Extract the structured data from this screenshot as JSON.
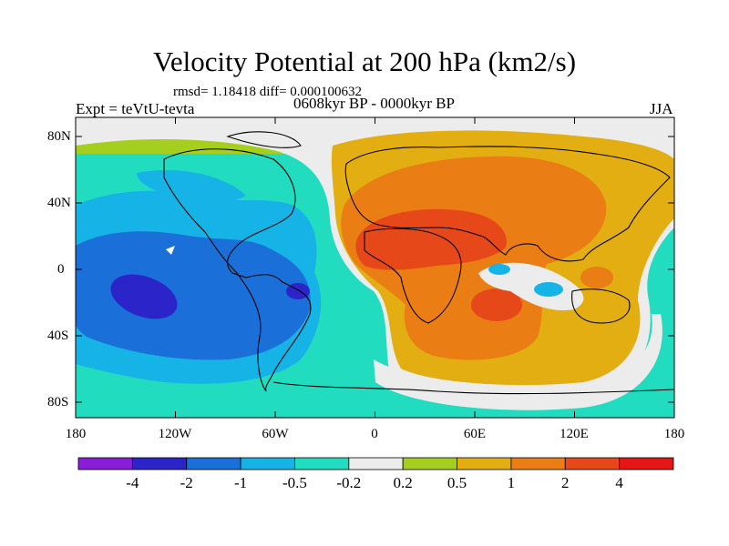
{
  "title": "Velocity Potential at 200 hPa (km2/s)",
  "stats_line": "rmsd= 1.18418 diff= 0.000100632",
  "experiment": "Expt = teVtU-tevta",
  "period": "0608kyr BP - 0000kyr BP",
  "season": "JJA",
  "lat_labels": [
    "80N",
    "40N",
    "0",
    "40S",
    "80S"
  ],
  "lon_labels": [
    "180",
    "120W",
    "60W",
    "0",
    "60E",
    "120E",
    "180"
  ],
  "colorbar": {
    "labels": [
      "-4",
      "-2",
      "-1",
      "-0.5",
      "-0.2",
      "0.2",
      "0.5",
      "1",
      "2",
      "4"
    ],
    "colors": [
      "#8a1ed8",
      "#2b25c9",
      "#1a6fd8",
      "#16b3e6",
      "#22dcc0",
      "#ececec",
      "#a5cf1e",
      "#e2ae12",
      "#ea7d14",
      "#e6481a",
      "#e41616"
    ]
  }
}
